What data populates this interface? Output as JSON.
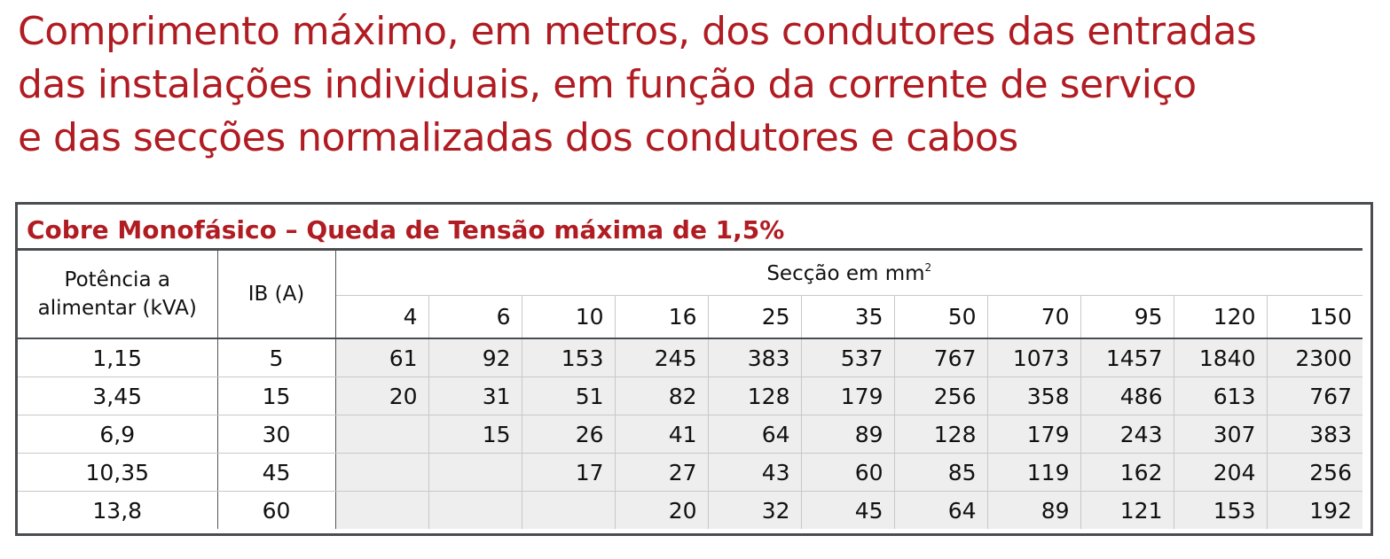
{
  "title_lines": [
    "Comprimento máximo, em metros, dos condutores das entradas",
    "das instalações individuais, em função da corrente de serviço",
    "e das secções normalizadas dos condutores e cabos"
  ],
  "subtitle": "Cobre Monofásico – Queda de Tensão máxima de 1,5%",
  "colors": {
    "accent": "#b01c22",
    "border": "#4a4d50",
    "cell_bg": "#eeeeee"
  },
  "table": {
    "header_potencia": "Potência a alimentar (kVA)",
    "header_ib": "IB (A)",
    "header_seccao": "Secção em mm",
    "header_seccao_sup": "2",
    "sections": [
      "4",
      "6",
      "10",
      "16",
      "25",
      "35",
      "50",
      "70",
      "95",
      "120",
      "150"
    ],
    "rows": [
      {
        "potencia": "1,15",
        "ib": "5",
        "values": [
          "61",
          "92",
          "153",
          "245",
          "383",
          "537",
          "767",
          "1073",
          "1457",
          "1840",
          "2300"
        ]
      },
      {
        "potencia": "3,45",
        "ib": "15",
        "values": [
          "20",
          "31",
          "51",
          "82",
          "128",
          "179",
          "256",
          "358",
          "486",
          "613",
          "767"
        ]
      },
      {
        "potencia": "6,9",
        "ib": "30",
        "values": [
          "",
          "15",
          "26",
          "41",
          "64",
          "89",
          "128",
          "179",
          "243",
          "307",
          "383"
        ]
      },
      {
        "potencia": "10,35",
        "ib": "45",
        "values": [
          "",
          "",
          "17",
          "27",
          "43",
          "60",
          "85",
          "119",
          "162",
          "204",
          "256"
        ]
      },
      {
        "potencia": "13,8",
        "ib": "60",
        "values": [
          "",
          "",
          "",
          "20",
          "32",
          "45",
          "64",
          "89",
          "121",
          "153",
          "192"
        ]
      }
    ]
  }
}
